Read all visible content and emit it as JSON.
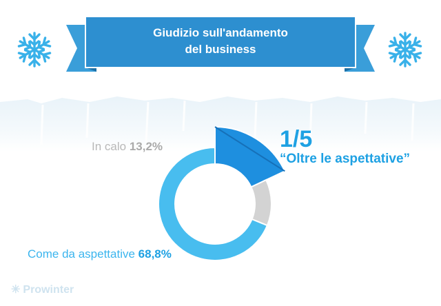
{
  "header": {
    "title_line1": "Giudizio sull'andamento",
    "title_line2": "del business"
  },
  "chart_data": {
    "type": "pie",
    "categories": [
      "Oltre le aspettative",
      "In calo",
      "Come da aspettative"
    ],
    "values": [
      18.0,
      13.2,
      68.8
    ],
    "colors": [
      "#1e8fdf",
      "#d3d3d3",
      "#48bdef"
    ],
    "labels": {
      "decline_text": "In calo",
      "decline_value": "13,2%",
      "expect_text": "Come da aspettative",
      "expect_value": "68,8%",
      "beyond_fraction": "1/5",
      "beyond_text": "“Oltre le aspettative”"
    }
  },
  "brand": {
    "icon": "snowflake-icon",
    "name": "Prowinter"
  }
}
